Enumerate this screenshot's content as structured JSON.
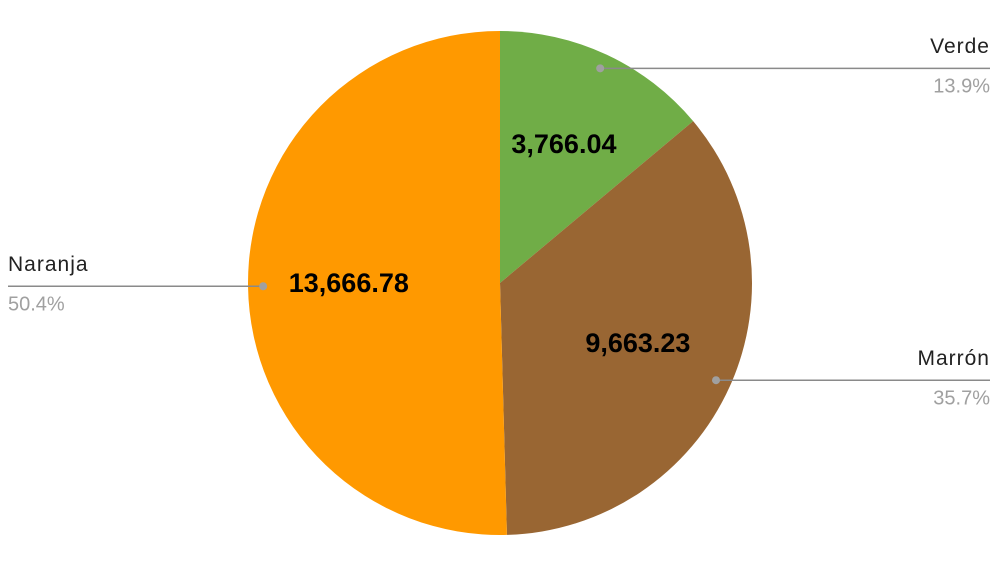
{
  "chart_data": {
    "type": "pie",
    "categories": [
      "Verde",
      "Marrón",
      "Naranja"
    ],
    "values": [
      3766.04,
      9663.23,
      13666.78
    ],
    "value_labels": [
      "3,766.04",
      "9,663.23",
      "13,666.78"
    ],
    "percentages": [
      13.9,
      35.7,
      50.4
    ],
    "percentage_labels": [
      "13.9%",
      "35.7%",
      "50.4%"
    ],
    "colors": [
      "#70ad47",
      "#996633",
      "#ff9900"
    ]
  }
}
